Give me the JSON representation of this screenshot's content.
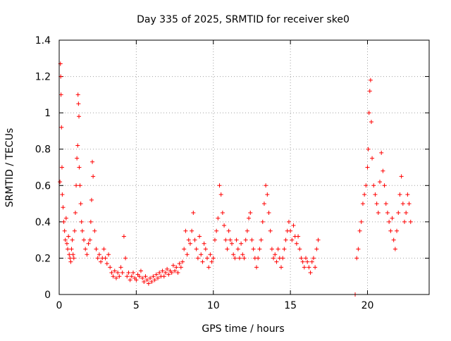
{
  "chart_data": {
    "type": "scatter",
    "title": "Day 335 of 2025, SRMTID for receiver ske0",
    "xlabel": "GPS time / hours",
    "ylabel": "SRMTID / TECUs",
    "xlim": [
      0,
      24
    ],
    "ylim": [
      0,
      1.4
    ],
    "grid": true,
    "x_ticks": [
      0,
      5,
      10,
      15,
      20
    ],
    "x_tick_labels": [
      "0",
      "5",
      "10",
      "15",
      "20"
    ],
    "y_ticks": [
      0,
      0.2,
      0.4,
      0.6,
      0.8,
      1.0,
      1.2,
      1.4
    ],
    "y_tick_labels": [
      "0",
      "0.2",
      "0.4",
      "0.6",
      "0.8",
      "1",
      "1.2",
      "1.4"
    ],
    "marker": "+",
    "series": [
      {
        "name": "SRMTID",
        "color": "#ff0000",
        "points": [
          [
            0.05,
            0.62
          ],
          [
            0.08,
            1.27
          ],
          [
            0.1,
            1.2
          ],
          [
            0.12,
            1.1
          ],
          [
            0.15,
            0.92
          ],
          [
            0.18,
            0.7
          ],
          [
            0.2,
            0.55
          ],
          [
            0.25,
            0.48
          ],
          [
            0.3,
            0.4
          ],
          [
            0.35,
            0.35
          ],
          [
            0.4,
            0.3
          ],
          [
            0.45,
            0.42
          ],
          [
            0.5,
            0.28
          ],
          [
            0.55,
            0.25
          ],
          [
            0.6,
            0.32
          ],
          [
            0.65,
            0.22
          ],
          [
            0.7,
            0.2
          ],
          [
            0.75,
            0.18
          ],
          [
            0.8,
            0.25
          ],
          [
            0.85,
            0.3
          ],
          [
            0.9,
            0.22
          ],
          [
            0.95,
            0.2
          ],
          [
            1.0,
            0.35
          ],
          [
            1.05,
            0.45
          ],
          [
            1.1,
            0.6
          ],
          [
            1.15,
            0.75
          ],
          [
            1.2,
            0.82
          ],
          [
            1.22,
            1.1
          ],
          [
            1.25,
            1.05
          ],
          [
            1.28,
            0.98
          ],
          [
            1.3,
            0.7
          ],
          [
            1.35,
            0.6
          ],
          [
            1.4,
            0.5
          ],
          [
            1.45,
            0.4
          ],
          [
            1.5,
            0.35
          ],
          [
            1.6,
            0.3
          ],
          [
            1.7,
            0.25
          ],
          [
            1.8,
            0.22
          ],
          [
            1.9,
            0.28
          ],
          [
            2.0,
            0.3
          ],
          [
            2.05,
            0.4
          ],
          [
            2.1,
            0.52
          ],
          [
            2.15,
            0.73
          ],
          [
            2.2,
            0.65
          ],
          [
            2.3,
            0.35
          ],
          [
            2.4,
            0.25
          ],
          [
            2.5,
            0.2
          ],
          [
            2.6,
            0.22
          ],
          [
            2.7,
            0.18
          ],
          [
            2.8,
            0.2
          ],
          [
            2.9,
            0.25
          ],
          [
            3.0,
            0.2
          ],
          [
            3.1,
            0.17
          ],
          [
            3.2,
            0.22
          ],
          [
            3.3,
            0.15
          ],
          [
            3.4,
            0.12
          ],
          [
            3.5,
            0.1
          ],
          [
            3.6,
            0.13
          ],
          [
            3.7,
            0.09
          ],
          [
            3.8,
            0.12
          ],
          [
            3.9,
            0.1
          ],
          [
            4.0,
            0.15
          ],
          [
            4.1,
            0.12
          ],
          [
            4.2,
            0.32
          ],
          [
            4.3,
            0.2
          ],
          [
            4.4,
            0.1
          ],
          [
            4.5,
            0.12
          ],
          [
            4.6,
            0.08
          ],
          [
            4.7,
            0.1
          ],
          [
            4.8,
            0.12
          ],
          [
            4.9,
            0.09
          ],
          [
            5.0,
            0.08
          ],
          [
            5.1,
            0.11
          ],
          [
            5.2,
            0.1
          ],
          [
            5.3,
            0.13
          ],
          [
            5.4,
            0.09
          ],
          [
            5.5,
            0.07
          ],
          [
            5.6,
            0.1
          ],
          [
            5.7,
            0.08
          ],
          [
            5.8,
            0.06
          ],
          [
            5.9,
            0.09
          ],
          [
            6.0,
            0.07
          ],
          [
            6.1,
            0.1
          ],
          [
            6.2,
            0.08
          ],
          [
            6.3,
            0.11
          ],
          [
            6.4,
            0.09
          ],
          [
            6.5,
            0.12
          ],
          [
            6.6,
            0.1
          ],
          [
            6.7,
            0.13
          ],
          [
            6.8,
            0.1
          ],
          [
            6.9,
            0.12
          ],
          [
            7.0,
            0.14
          ],
          [
            7.1,
            0.11
          ],
          [
            7.2,
            0.13
          ],
          [
            7.3,
            0.12
          ],
          [
            7.4,
            0.16
          ],
          [
            7.5,
            0.13
          ],
          [
            7.6,
            0.15
          ],
          [
            7.7,
            0.12
          ],
          [
            7.8,
            0.17
          ],
          [
            7.9,
            0.15
          ],
          [
            8.0,
            0.18
          ],
          [
            8.1,
            0.25
          ],
          [
            8.2,
            0.35
          ],
          [
            8.3,
            0.22
          ],
          [
            8.4,
            0.3
          ],
          [
            8.5,
            0.28
          ],
          [
            8.6,
            0.35
          ],
          [
            8.7,
            0.45
          ],
          [
            8.8,
            0.3
          ],
          [
            8.9,
            0.25
          ],
          [
            9.0,
            0.2
          ],
          [
            9.1,
            0.32
          ],
          [
            9.2,
            0.22
          ],
          [
            9.3,
            0.18
          ],
          [
            9.4,
            0.28
          ],
          [
            9.5,
            0.25
          ],
          [
            9.6,
            0.2
          ],
          [
            9.7,
            0.15
          ],
          [
            9.8,
            0.22
          ],
          [
            9.9,
            0.18
          ],
          [
            10.0,
            0.2
          ],
          [
            10.1,
            0.3
          ],
          [
            10.2,
            0.35
          ],
          [
            10.3,
            0.42
          ],
          [
            10.4,
            0.6
          ],
          [
            10.5,
            0.55
          ],
          [
            10.6,
            0.45
          ],
          [
            10.7,
            0.38
          ],
          [
            10.8,
            0.3
          ],
          [
            10.9,
            0.25
          ],
          [
            11.0,
            0.35
          ],
          [
            11.1,
            0.3
          ],
          [
            11.2,
            0.28
          ],
          [
            11.3,
            0.22
          ],
          [
            11.4,
            0.2
          ],
          [
            11.5,
            0.3
          ],
          [
            11.6,
            0.25
          ],
          [
            11.7,
            0.2
          ],
          [
            11.8,
            0.28
          ],
          [
            11.9,
            0.22
          ],
          [
            12.0,
            0.2
          ],
          [
            12.1,
            0.3
          ],
          [
            12.2,
            0.35
          ],
          [
            12.3,
            0.42
          ],
          [
            12.4,
            0.45
          ],
          [
            12.5,
            0.3
          ],
          [
            12.6,
            0.25
          ],
          [
            12.7,
            0.2
          ],
          [
            12.8,
            0.15
          ],
          [
            12.9,
            0.2
          ],
          [
            13.0,
            0.25
          ],
          [
            13.1,
            0.3
          ],
          [
            13.2,
            0.4
          ],
          [
            13.3,
            0.5
          ],
          [
            13.4,
            0.6
          ],
          [
            13.5,
            0.55
          ],
          [
            13.6,
            0.45
          ],
          [
            13.7,
            0.35
          ],
          [
            13.8,
            0.25
          ],
          [
            13.9,
            0.2
          ],
          [
            14.0,
            0.22
          ],
          [
            14.1,
            0.18
          ],
          [
            14.2,
            0.25
          ],
          [
            14.3,
            0.2
          ],
          [
            14.4,
            0.15
          ],
          [
            14.5,
            0.2
          ],
          [
            14.6,
            0.25
          ],
          [
            14.7,
            0.3
          ],
          [
            14.8,
            0.35
          ],
          [
            14.9,
            0.4
          ],
          [
            15.0,
            0.35
          ],
          [
            15.1,
            0.3
          ],
          [
            15.2,
            0.38
          ],
          [
            15.3,
            0.32
          ],
          [
            15.4,
            0.28
          ],
          [
            15.5,
            0.32
          ],
          [
            15.6,
            0.25
          ],
          [
            15.7,
            0.2
          ],
          [
            15.8,
            0.18
          ],
          [
            15.9,
            0.15
          ],
          [
            16.0,
            0.2
          ],
          [
            16.1,
            0.18
          ],
          [
            16.2,
            0.15
          ],
          [
            16.3,
            0.12
          ],
          [
            16.4,
            0.18
          ],
          [
            16.5,
            0.2
          ],
          [
            16.6,
            0.15
          ],
          [
            16.7,
            0.25
          ],
          [
            16.8,
            0.3
          ],
          [
            19.2,
            0.0
          ],
          [
            19.3,
            0.2
          ],
          [
            19.4,
            0.25
          ],
          [
            19.5,
            0.35
          ],
          [
            19.6,
            0.4
          ],
          [
            19.7,
            0.5
          ],
          [
            19.8,
            0.55
          ],
          [
            19.9,
            0.6
          ],
          [
            20.0,
            0.7
          ],
          [
            20.05,
            0.8
          ],
          [
            20.1,
            1.0
          ],
          [
            20.15,
            1.12
          ],
          [
            20.2,
            1.18
          ],
          [
            20.25,
            0.95
          ],
          [
            20.3,
            0.75
          ],
          [
            20.4,
            0.6
          ],
          [
            20.5,
            0.55
          ],
          [
            20.6,
            0.5
          ],
          [
            20.7,
            0.45
          ],
          [
            20.8,
            0.62
          ],
          [
            20.9,
            0.78
          ],
          [
            21.0,
            0.68
          ],
          [
            21.1,
            0.6
          ],
          [
            21.2,
            0.5
          ],
          [
            21.3,
            0.45
          ],
          [
            21.4,
            0.4
          ],
          [
            21.5,
            0.35
          ],
          [
            21.6,
            0.42
          ],
          [
            21.7,
            0.3
          ],
          [
            21.8,
            0.25
          ],
          [
            21.9,
            0.35
          ],
          [
            22.0,
            0.45
          ],
          [
            22.1,
            0.55
          ],
          [
            22.2,
            0.65
          ],
          [
            22.3,
            0.5
          ],
          [
            22.4,
            0.4
          ],
          [
            22.5,
            0.45
          ],
          [
            22.6,
            0.55
          ],
          [
            22.7,
            0.5
          ],
          [
            22.8,
            0.4
          ]
        ]
      }
    ]
  }
}
